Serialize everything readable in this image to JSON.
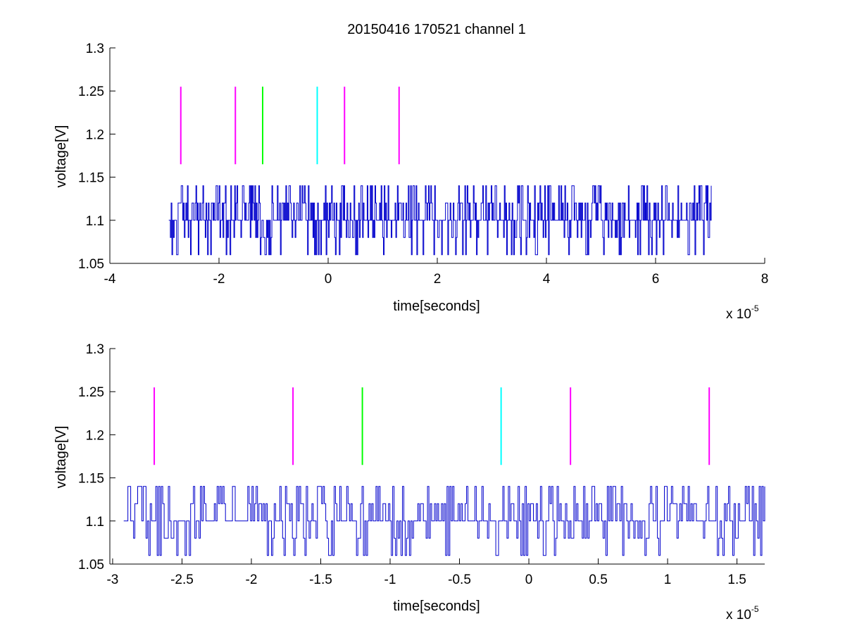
{
  "figure": {
    "title": "20150416 170521 channel 1"
  },
  "chart_data": [
    {
      "type": "line",
      "title": "20150416 170521 channel 1",
      "xlabel": "time[seconds]",
      "ylabel": "voltage[V]",
      "x_exponent_label": "x 10",
      "x_exponent": "-5",
      "xlim": [
        -4,
        8
      ],
      "ylim": [
        1.05,
        1.3
      ],
      "x_ticks": [
        -4,
        -2,
        0,
        2,
        4,
        6,
        8
      ],
      "x_tick_labels": [
        "-4",
        "-2",
        "0",
        "2",
        "4",
        "6",
        "8"
      ],
      "y_ticks": [
        1.05,
        1.1,
        1.15,
        1.2,
        1.25,
        1.3
      ],
      "y_tick_labels": [
        "1.05",
        "1.1",
        "1.15",
        "1.2",
        "1.25",
        "1.3"
      ],
      "grid": false,
      "signal": {
        "color": "#0000cc",
        "x_start": -2.92,
        "x_end": 7.02,
        "levels": [
          1.06,
          1.08,
          1.1,
          1.12,
          1.14
        ],
        "baseline": 1.1
      },
      "markers": [
        {
          "x": -2.7,
          "y_range": [
            1.165,
            1.255
          ],
          "color": "#ff00ff"
        },
        {
          "x": -1.7,
          "y_range": [
            1.165,
            1.255
          ],
          "color": "#ff00ff"
        },
        {
          "x": -1.2,
          "y_range": [
            1.165,
            1.255
          ],
          "color": "#00ff00"
        },
        {
          "x": -0.2,
          "y_range": [
            1.165,
            1.255
          ],
          "color": "#00ffff"
        },
        {
          "x": 0.3,
          "y_range": [
            1.165,
            1.255
          ],
          "color": "#ff00ff"
        },
        {
          "x": 1.3,
          "y_range": [
            1.165,
            1.255
          ],
          "color": "#ff00ff"
        }
      ]
    },
    {
      "type": "line",
      "title": "",
      "xlabel": "time[seconds]",
      "ylabel": "voltage[V]",
      "x_exponent_label": "x 10",
      "x_exponent": "-5",
      "xlim": [
        -3.02,
        1.7
      ],
      "ylim": [
        1.05,
        1.3
      ],
      "x_ticks": [
        -3,
        -2.5,
        -2,
        -1.5,
        -1,
        -0.5,
        0,
        0.5,
        1,
        1.5
      ],
      "x_tick_labels": [
        "-3",
        "-2.5",
        "-2",
        "-1.5",
        "-1",
        "-0.5",
        "0",
        "0.5",
        "1",
        "1.5"
      ],
      "y_ticks": [
        1.05,
        1.1,
        1.15,
        1.2,
        1.25,
        1.3
      ],
      "y_tick_labels": [
        "1.05",
        "1.1",
        "1.15",
        "1.2",
        "1.25",
        "1.3"
      ],
      "grid": false,
      "signal": {
        "color": "#0000cc",
        "x_start": -2.92,
        "x_end": 1.7,
        "levels": [
          1.06,
          1.08,
          1.1,
          1.12,
          1.14
        ],
        "baseline": 1.1
      },
      "markers": [
        {
          "x": -2.7,
          "y_range": [
            1.165,
            1.255
          ],
          "color": "#ff00ff"
        },
        {
          "x": -1.7,
          "y_range": [
            1.165,
            1.255
          ],
          "color": "#ff00ff"
        },
        {
          "x": -1.2,
          "y_range": [
            1.165,
            1.255
          ],
          "color": "#00ff00"
        },
        {
          "x": -0.2,
          "y_range": [
            1.165,
            1.255
          ],
          "color": "#00ffff"
        },
        {
          "x": 0.3,
          "y_range": [
            1.165,
            1.255
          ],
          "color": "#ff00ff"
        },
        {
          "x": 1.3,
          "y_range": [
            1.165,
            1.255
          ],
          "color": "#ff00ff"
        }
      ]
    }
  ]
}
